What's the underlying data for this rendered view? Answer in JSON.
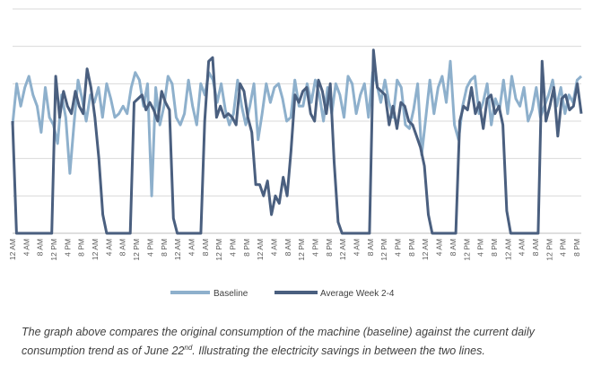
{
  "chart_data": {
    "type": "line",
    "title": "",
    "xlabel": "",
    "ylabel": "",
    "ylim": [
      0,
      6
    ],
    "grid": true,
    "legend_position": "bottom",
    "tick_labels": [
      "12 AM",
      "4 AM",
      "8 AM",
      "12 PM",
      "4 PM",
      "8 PM",
      "12 AM",
      "4 AM",
      "8 AM",
      "12 PM",
      "4 PM",
      "8 PM",
      "12 AM",
      "4 AM",
      "8 AM",
      "12 PM",
      "4 PM",
      "8 PM",
      "12 AM",
      "4 AM",
      "8 AM",
      "12 PM",
      "4 PM",
      "8 PM",
      "12 AM",
      "4 AM",
      "8 AM",
      "12 PM",
      "4 PM",
      "8 PM",
      "12 AM",
      "4 AM",
      "8 AM",
      "12 PM",
      "4 PM",
      "8 PM",
      "12 AM",
      "4 AM",
      "8 AM",
      "12 PM",
      "4 PM",
      "8 PM"
    ],
    "series": [
      {
        "name": "Baseline",
        "color": "#8eb0cc",
        "values": [
          2.9,
          4.0,
          3.4,
          3.9,
          4.2,
          3.7,
          3.4,
          2.7,
          3.9,
          3.1,
          2.9,
          2.4,
          3.7,
          3.1,
          1.6,
          2.9,
          4.1,
          3.6,
          3.0,
          3.7,
          3.5,
          3.9,
          3.1,
          4.0,
          3.6,
          3.1,
          3.2,
          3.4,
          3.2,
          3.9,
          4.3,
          4.1,
          3.4,
          4.0,
          1.0,
          3.9,
          2.9,
          3.4,
          4.2,
          4.0,
          3.1,
          2.9,
          3.2,
          4.1,
          3.4,
          2.9,
          4.0,
          3.7,
          4.3,
          4.1,
          3.5,
          4.0,
          3.3,
          2.9,
          3.2,
          4.1,
          3.4,
          2.9,
          3.4,
          4.0,
          2.5,
          3.2,
          4.0,
          3.5,
          3.9,
          4.0,
          3.6,
          3.0,
          3.1,
          4.1,
          3.4,
          3.4,
          4.0,
          3.5,
          4.1,
          3.7,
          3.0,
          3.9,
          3.2,
          4.0,
          3.7,
          3.1,
          4.2,
          4.0,
          3.2,
          3.7,
          4.0,
          3.1,
          4.3,
          4.0,
          3.5,
          4.1,
          3.5,
          3.1,
          4.1,
          3.9,
          2.9,
          2.8,
          3.3,
          4.0,
          2.1,
          3.1,
          4.1,
          3.2,
          3.9,
          4.2,
          3.5,
          4.6,
          2.9,
          2.5,
          3.4,
          3.9,
          4.1,
          4.2,
          3.2,
          3.5,
          4.0,
          2.9,
          3.6,
          3.3,
          4.1,
          3.2,
          4.2,
          3.6,
          3.4,
          3.9,
          3.0,
          3.3,
          3.9,
          3.1,
          3.4,
          3.7,
          4.1,
          3.4,
          3.9,
          3.2,
          3.7,
          3.5,
          4.1,
          4.2
        ]
      },
      {
        "name": "Average Week 2-4",
        "color": "#4a5f7f",
        "values": [
          3.0,
          0,
          0,
          0,
          0,
          0,
          0,
          0,
          0,
          0,
          0,
          4.2,
          3.1,
          3.8,
          3.4,
          3.2,
          3.8,
          3.4,
          3.2,
          4.4,
          3.9,
          3.1,
          2.0,
          0.5,
          0,
          0,
          0,
          0,
          0,
          0,
          0,
          3.5,
          3.6,
          3.7,
          3.3,
          3.5,
          3.3,
          3.0,
          3.8,
          3.5,
          3.3,
          0.4,
          0,
          0,
          0,
          0,
          0,
          0,
          0,
          3.0,
          4.6,
          4.7,
          3.1,
          3.4,
          3.1,
          3.2,
          3.1,
          2.9,
          4.0,
          3.8,
          3.1,
          2.7,
          1.3,
          1.3,
          1.0,
          1.4,
          0.5,
          1.0,
          0.8,
          1.5,
          1.0,
          2.2,
          3.7,
          3.5,
          3.8,
          3.9,
          3.2,
          3.0,
          4.1,
          3.8,
          3.2,
          4.0,
          1.9,
          0.3,
          0,
          0,
          0,
          0,
          0,
          0,
          0,
          0,
          4.9,
          3.9,
          3.8,
          3.7,
          2.9,
          3.4,
          2.8,
          3.5,
          3.4,
          3.0,
          2.9,
          2.6,
          2.3,
          1.8,
          0.5,
          0,
          0,
          0,
          0,
          0,
          0,
          0,
          3.0,
          3.4,
          3.3,
          3.9,
          3.2,
          3.5,
          2.8,
          3.6,
          3.7,
          3.2,
          3.4,
          2.9,
          0.6,
          0,
          0,
          0,
          0,
          0,
          0,
          0,
          0,
          4.6,
          3.0,
          3.4,
          3.9,
          2.6,
          3.6,
          3.7,
          3.3,
          3.4,
          4.0,
          3.2
        ]
      }
    ]
  },
  "legend": {
    "baseline_label": "Baseline",
    "average_label": "Average Week 2-4"
  },
  "caption": {
    "part1": "The graph above compares the original consumption of the machine (baseline) against the current daily consumption trend as of June 22",
    "superscript": "nd",
    "part2": ". Illustrating the electricity savings in between the two lines."
  }
}
